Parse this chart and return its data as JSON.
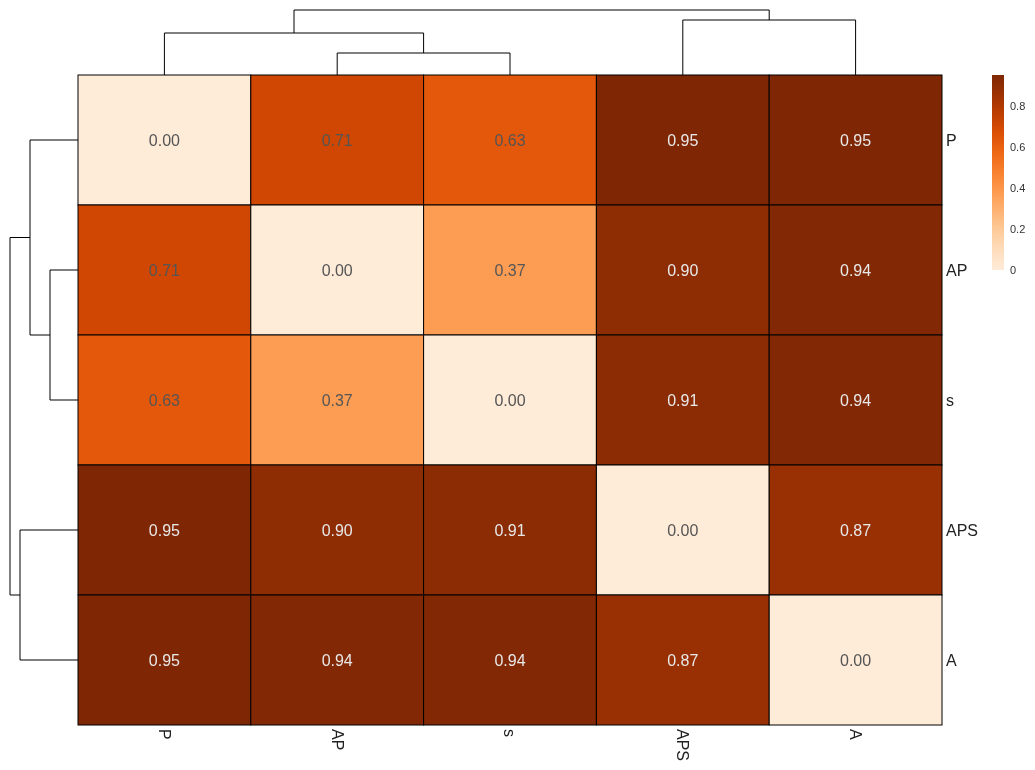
{
  "chart_data": {
    "type": "heatmap",
    "categories": [
      "P",
      "AP",
      "s",
      "APS",
      "A"
    ],
    "y_categories": [
      "P",
      "AP",
      "s",
      "APS",
      "A"
    ],
    "cells": [
      [
        0.0,
        0.71,
        0.63,
        0.95,
        0.95
      ],
      [
        0.71,
        0.0,
        0.37,
        0.9,
        0.94
      ],
      [
        0.63,
        0.37,
        0.0,
        0.91,
        0.94
      ],
      [
        0.95,
        0.9,
        0.91,
        0.0,
        0.87
      ],
      [
        0.95,
        0.94,
        0.94,
        0.87,
        0.0
      ]
    ],
    "cell_labels": [
      [
        "0.00",
        "0.71",
        "0.63",
        "0.95",
        "0.95"
      ],
      [
        "0.71",
        "0.00",
        "0.37",
        "0.90",
        "0.94"
      ],
      [
        "0.63",
        "0.37",
        "0.00",
        "0.91",
        "0.94"
      ],
      [
        "0.95",
        "0.90",
        "0.91",
        "0.00",
        "0.87"
      ],
      [
        "0.95",
        "0.94",
        "0.94",
        "0.87",
        "0.00"
      ]
    ],
    "clim": [
      0,
      0.95
    ],
    "cticks": [
      0,
      0.2,
      0.4,
      0.6,
      0.8
    ],
    "data_labels": true
  }
}
